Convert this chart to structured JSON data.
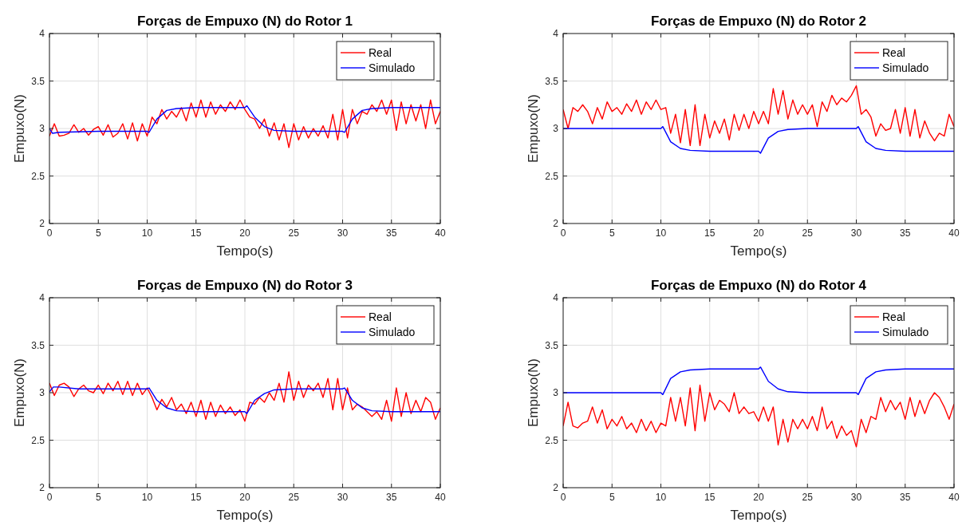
{
  "chart_data": [
    {
      "type": "line",
      "title": "Forças de Empuxo (N) do Rotor 1",
      "xlabel": "Tempo(s)",
      "ylabel": "Empuxo(N)",
      "xlim": [
        0,
        40
      ],
      "xticks": [
        0,
        5,
        10,
        15,
        20,
        25,
        30,
        35,
        40
      ],
      "ylim": [
        2,
        4
      ],
      "yticks": [
        2,
        2.5,
        3,
        3.5,
        4
      ],
      "grid": true,
      "legend": "top right",
      "series": [
        {
          "name": "Real",
          "color": "#ff0000",
          "x": [
            0,
            0.5,
            1,
            1.5,
            2,
            2.5,
            3,
            3.5,
            4,
            4.5,
            5,
            5.5,
            6,
            6.5,
            7,
            7.5,
            8,
            8.5,
            9,
            9.5,
            10,
            10.5,
            11,
            11.5,
            12,
            12.5,
            13,
            13.5,
            14,
            14.5,
            15,
            15.5,
            16,
            16.5,
            17,
            17.5,
            18,
            18.5,
            19,
            19.5,
            20,
            20.5,
            21,
            21.5,
            22,
            22.5,
            23,
            23.5,
            24,
            24.5,
            25,
            25.5,
            26,
            26.5,
            27,
            27.5,
            28,
            28.5,
            29,
            29.5,
            30,
            30.5,
            31,
            31.5,
            32,
            32.5,
            33,
            33.5,
            34,
            34.5,
            35,
            35.5,
            36,
            36.5,
            37,
            37.5,
            38,
            38.5,
            39,
            39.5,
            40
          ],
          "values": [
            2.92,
            3.05,
            2.92,
            2.93,
            2.95,
            3.04,
            2.96,
            3.0,
            2.93,
            2.99,
            3.02,
            2.93,
            3.04,
            2.91,
            2.95,
            3.05,
            2.89,
            3.06,
            2.87,
            3.05,
            2.92,
            3.12,
            3.05,
            3.2,
            3.1,
            3.18,
            3.12,
            3.22,
            3.08,
            3.27,
            3.12,
            3.3,
            3.12,
            3.28,
            3.15,
            3.25,
            3.18,
            3.28,
            3.2,
            3.3,
            3.2,
            3.12,
            3.1,
            3.0,
            3.1,
            2.92,
            3.06,
            2.88,
            3.05,
            2.8,
            3.05,
            2.88,
            3.02,
            2.9,
            3.0,
            2.92,
            3.03,
            2.9,
            3.15,
            2.88,
            3.2,
            2.9,
            3.2,
            3.05,
            3.18,
            3.15,
            3.25,
            3.18,
            3.3,
            3.15,
            3.3,
            2.98,
            3.28,
            3.05,
            3.25,
            3.08,
            3.25,
            3.0,
            3.3,
            3.05,
            3.18
          ]
        },
        {
          "name": "Simulado",
          "color": "#0000ff",
          "x": [
            0,
            0.3,
            1,
            5,
            10,
            10.2,
            11,
            12,
            13,
            15,
            20,
            20.2,
            21,
            22,
            23,
            25,
            30,
            30.2,
            31,
            32,
            33,
            35,
            40
          ],
          "values": [
            3.0,
            2.95,
            2.96,
            2.97,
            2.97,
            2.96,
            3.1,
            3.19,
            3.21,
            3.22,
            3.22,
            3.24,
            3.12,
            3.02,
            2.98,
            2.97,
            2.97,
            2.96,
            3.1,
            3.19,
            3.21,
            3.22,
            3.22
          ]
        }
      ]
    },
    {
      "type": "line",
      "title": "Forças de Empuxo (N) do Rotor 2",
      "xlabel": "Tempo(s)",
      "ylabel": "Empuxo(N)",
      "xlim": [
        0,
        40
      ],
      "xticks": [
        0,
        5,
        10,
        15,
        20,
        25,
        30,
        35,
        40
      ],
      "ylim": [
        2,
        4
      ],
      "yticks": [
        2,
        2.5,
        3,
        3.5,
        4
      ],
      "grid": true,
      "legend": "top right",
      "series": [
        {
          "name": "Real",
          "color": "#ff0000",
          "x": [
            0,
            0.5,
            1,
            1.5,
            2,
            2.5,
            3,
            3.5,
            4,
            4.5,
            5,
            5.5,
            6,
            6.5,
            7,
            7.5,
            8,
            8.5,
            9,
            9.5,
            10,
            10.5,
            11,
            11.5,
            12,
            12.5,
            13,
            13.5,
            14,
            14.5,
            15,
            15.5,
            16,
            16.5,
            17,
            17.5,
            18,
            18.5,
            19,
            19.5,
            20,
            20.5,
            21,
            21.5,
            22,
            22.5,
            23,
            23.5,
            24,
            24.5,
            25,
            25.5,
            26,
            26.5,
            27,
            27.5,
            28,
            28.5,
            29,
            29.5,
            30,
            30.5,
            31,
            31.5,
            32,
            32.5,
            33,
            33.5,
            34,
            34.5,
            35,
            35.5,
            36,
            36.5,
            37,
            37.5,
            38,
            38.5,
            39,
            39.5,
            40
          ],
          "values": [
            3.2,
            3.0,
            3.22,
            3.18,
            3.25,
            3.18,
            3.05,
            3.22,
            3.1,
            3.28,
            3.18,
            3.22,
            3.15,
            3.26,
            3.18,
            3.3,
            3.15,
            3.28,
            3.2,
            3.3,
            3.2,
            3.22,
            2.95,
            3.15,
            2.85,
            3.2,
            2.82,
            3.25,
            2.82,
            3.15,
            2.9,
            3.08,
            2.95,
            3.1,
            2.88,
            3.15,
            2.98,
            3.15,
            3.0,
            3.18,
            3.05,
            3.18,
            3.05,
            3.42,
            3.15,
            3.4,
            3.1,
            3.3,
            3.15,
            3.25,
            3.15,
            3.25,
            3.02,
            3.28,
            3.18,
            3.35,
            3.25,
            3.32,
            3.28,
            3.35,
            3.45,
            3.15,
            3.2,
            3.12,
            2.92,
            3.05,
            2.98,
            3.0,
            3.2,
            2.95,
            3.22,
            2.92,
            3.2,
            2.9,
            3.08,
            2.95,
            2.87,
            2.95,
            2.92,
            3.15,
            3.02
          ]
        },
        {
          "name": "Simulado",
          "color": "#0000ff",
          "x": [
            0,
            10,
            10.2,
            11,
            12,
            13,
            15,
            20,
            20.2,
            21,
            22,
            23,
            25,
            30,
            30.2,
            31,
            32,
            33,
            35,
            40
          ],
          "values": [
            3.0,
            3.0,
            3.02,
            2.86,
            2.79,
            2.77,
            2.76,
            2.76,
            2.74,
            2.9,
            2.97,
            2.99,
            3.0,
            3.0,
            3.02,
            2.86,
            2.79,
            2.77,
            2.76,
            2.76
          ]
        }
      ]
    },
    {
      "type": "line",
      "title": "Forças de Empuxo (N) do Rotor 3",
      "xlabel": "Tempo(s)",
      "ylabel": "Empuxo(N)",
      "xlim": [
        0,
        40
      ],
      "xticks": [
        0,
        5,
        10,
        15,
        20,
        25,
        30,
        35,
        40
      ],
      "ylim": [
        2,
        4
      ],
      "yticks": [
        2,
        2.5,
        3,
        3.5,
        4
      ],
      "grid": true,
      "legend": "top right",
      "series": [
        {
          "name": "Real",
          "color": "#ff0000",
          "x": [
            0,
            0.5,
            1,
            1.5,
            2,
            2.5,
            3,
            3.5,
            4,
            4.5,
            5,
            5.5,
            6,
            6.5,
            7,
            7.5,
            8,
            8.5,
            9,
            9.5,
            10,
            10.5,
            11,
            11.5,
            12,
            12.5,
            13,
            13.5,
            14,
            14.5,
            15,
            15.5,
            16,
            16.5,
            17,
            17.5,
            18,
            18.5,
            19,
            19.5,
            20,
            20.5,
            21,
            21.5,
            22,
            22.5,
            23,
            23.5,
            24,
            24.5,
            25,
            25.5,
            26,
            26.5,
            27,
            27.5,
            28,
            28.5,
            29,
            29.5,
            30,
            30.5,
            31,
            31.5,
            32,
            32.5,
            33,
            33.5,
            34,
            34.5,
            35,
            35.5,
            36,
            36.5,
            37,
            37.5,
            38,
            38.5,
            39,
            39.5,
            40
          ],
          "values": [
            3.1,
            2.97,
            3.08,
            3.1,
            3.06,
            2.96,
            3.04,
            3.08,
            3.02,
            3.0,
            3.08,
            2.99,
            3.1,
            3.02,
            3.12,
            2.98,
            3.12,
            2.97,
            3.1,
            2.98,
            3.05,
            2.95,
            2.82,
            2.93,
            2.85,
            2.95,
            2.82,
            2.88,
            2.78,
            2.9,
            2.75,
            2.92,
            2.72,
            2.9,
            2.75,
            2.87,
            2.78,
            2.85,
            2.76,
            2.82,
            2.7,
            2.9,
            2.88,
            2.95,
            2.9,
            3.0,
            2.92,
            3.1,
            2.9,
            3.22,
            2.92,
            3.12,
            2.95,
            3.08,
            3.02,
            3.1,
            2.95,
            3.15,
            2.82,
            3.15,
            2.82,
            3.05,
            2.82,
            2.88,
            2.85,
            2.8,
            2.75,
            2.8,
            2.72,
            2.92,
            2.7,
            3.05,
            2.75,
            3.0,
            2.78,
            2.92,
            2.8,
            2.95,
            2.9,
            2.72,
            2.84
          ]
        },
        {
          "name": "Simulado",
          "color": "#0000ff",
          "x": [
            0,
            0.4,
            1,
            3,
            10,
            10.2,
            11,
            12,
            13,
            15,
            20,
            20.2,
            21,
            22,
            23,
            25,
            30,
            30.2,
            31,
            32,
            33,
            35,
            40
          ],
          "values": [
            3.01,
            3.06,
            3.06,
            3.04,
            3.04,
            3.05,
            2.92,
            2.84,
            2.81,
            2.8,
            2.8,
            2.78,
            2.92,
            2.99,
            3.03,
            3.04,
            3.04,
            3.05,
            2.92,
            2.84,
            2.81,
            2.8,
            2.8
          ]
        }
      ]
    },
    {
      "type": "line",
      "title": "Forças de Empuxo (N) do Rotor 4",
      "xlabel": "Tempo(s)",
      "ylabel": "Empuxo(N)",
      "xlim": [
        0,
        40
      ],
      "xticks": [
        0,
        5,
        10,
        15,
        20,
        25,
        30,
        35,
        40
      ],
      "ylim": [
        2,
        4
      ],
      "yticks": [
        2,
        2.5,
        3,
        3.5,
        4
      ],
      "grid": true,
      "legend": "top right",
      "series": [
        {
          "name": "Real",
          "color": "#ff0000",
          "x": [
            0,
            0.5,
            1,
            1.5,
            2,
            2.5,
            3,
            3.5,
            4,
            4.5,
            5,
            5.5,
            6,
            6.5,
            7,
            7.5,
            8,
            8.5,
            9,
            9.5,
            10,
            10.5,
            11,
            11.5,
            12,
            12.5,
            13,
            13.5,
            14,
            14.5,
            15,
            15.5,
            16,
            16.5,
            17,
            17.5,
            18,
            18.5,
            19,
            19.5,
            20,
            20.5,
            21,
            21.5,
            22,
            22.5,
            23,
            23.5,
            24,
            24.5,
            25,
            25.5,
            26,
            26.5,
            27,
            27.5,
            28,
            28.5,
            29,
            29.5,
            30,
            30.5,
            31,
            31.5,
            32,
            32.5,
            33,
            33.5,
            34,
            34.5,
            35,
            35.5,
            36,
            36.5,
            37,
            37.5,
            38,
            38.5,
            39,
            39.5,
            40
          ],
          "values": [
            2.65,
            2.9,
            2.65,
            2.63,
            2.68,
            2.7,
            2.85,
            2.68,
            2.82,
            2.62,
            2.72,
            2.65,
            2.75,
            2.62,
            2.68,
            2.58,
            2.72,
            2.6,
            2.7,
            2.58,
            2.68,
            2.65,
            2.95,
            2.7,
            2.95,
            2.65,
            3.05,
            2.6,
            3.08,
            2.7,
            3.0,
            2.82,
            2.92,
            2.88,
            2.8,
            3.0,
            2.78,
            2.85,
            2.78,
            2.8,
            2.7,
            2.85,
            2.7,
            2.85,
            2.45,
            2.72,
            2.48,
            2.72,
            2.62,
            2.72,
            2.62,
            2.75,
            2.6,
            2.85,
            2.62,
            2.7,
            2.52,
            2.65,
            2.55,
            2.6,
            2.43,
            2.72,
            2.58,
            2.75,
            2.72,
            2.95,
            2.8,
            2.92,
            2.82,
            2.9,
            2.72,
            2.95,
            2.75,
            2.92,
            2.78,
            2.92,
            3.0,
            2.95,
            2.85,
            2.72,
            2.88
          ]
        },
        {
          "name": "Simulado",
          "color": "#0000ff",
          "x": [
            0,
            10,
            10.2,
            11,
            12,
            13,
            15,
            20,
            20.2,
            21,
            22,
            23,
            25,
            30,
            30.2,
            31,
            32,
            33,
            35,
            40
          ],
          "values": [
            3.0,
            3.0,
            2.98,
            3.15,
            3.22,
            3.24,
            3.25,
            3.25,
            3.27,
            3.12,
            3.04,
            3.01,
            3.0,
            3.0,
            2.98,
            3.15,
            3.22,
            3.24,
            3.25,
            3.25
          ]
        }
      ]
    }
  ]
}
